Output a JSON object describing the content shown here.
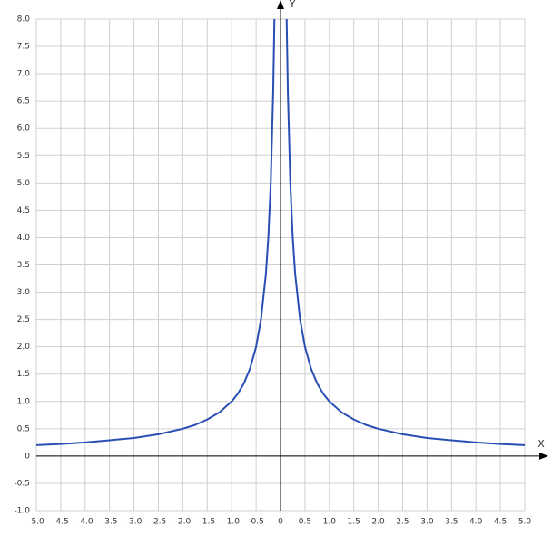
{
  "chart_data": {
    "type": "line",
    "x_label": "X",
    "y_label": "Y",
    "x": [
      -5,
      -4.5,
      -4,
      -3.5,
      -3,
      -2.5,
      -2,
      -1.75,
      -1.5,
      -1.25,
      -1,
      -0.875,
      -0.75,
      -0.625,
      -0.5,
      -0.4,
      -0.3,
      -0.25,
      -0.2,
      -0.15,
      -0.125,
      0,
      0.125,
      0.15,
      0.2,
      0.25,
      0.3,
      0.4,
      0.5,
      0.625,
      0.75,
      0.875,
      1,
      1.25,
      1.5,
      1.75,
      2,
      2.5,
      3,
      3.5,
      4,
      4.5,
      5
    ],
    "series": [
      {
        "color": "#2a4fb4",
        "values": [
          0.2,
          0.22,
          0.25,
          0.29,
          0.33,
          0.4,
          0.5,
          0.57,
          0.67,
          0.8,
          1,
          1.14,
          1.33,
          1.6,
          2,
          2.5,
          3.33,
          4,
          5,
          6.67,
          8,
          null,
          8,
          6.67,
          5,
          4,
          3.33,
          2.5,
          2,
          1.6,
          1.33,
          1.14,
          1,
          0.8,
          0.67,
          0.57,
          0.5,
          0.4,
          0.33,
          0.29,
          0.25,
          0.22,
          0.2
        ]
      }
    ],
    "xlim": [
      -5,
      5
    ],
    "ylim": [
      -1,
      8
    ],
    "grid": true,
    "xticks": [
      {
        "value": -5,
        "label": "-5.0"
      },
      {
        "value": -4.5,
        "label": "-4.5"
      },
      {
        "value": -4,
        "label": "-4.0"
      },
      {
        "value": -3.5,
        "label": "-3.5"
      },
      {
        "value": -3,
        "label": "-3.0"
      },
      {
        "value": -2.5,
        "label": "-2.5"
      },
      {
        "value": -2,
        "label": "-2.0"
      },
      {
        "value": -1.5,
        "label": "-1.5"
      },
      {
        "value": -1,
        "label": "-1.0"
      },
      {
        "value": -0.5,
        "label": "-0.5"
      },
      0,
      {
        "value": 0.5,
        "label": "0.5"
      },
      {
        "value": 1,
        "label": "1.0"
      },
      {
        "value": 1.5,
        "label": "1.5"
      },
      {
        "value": 2,
        "label": "2.0"
      },
      {
        "value": 2.5,
        "label": "2.5"
      },
      {
        "value": 3,
        "label": "3.0"
      },
      {
        "value": 3.5,
        "label": "3.5"
      },
      {
        "value": 4,
        "label": "4.0"
      },
      {
        "value": 4.5,
        "label": "4.5"
      },
      {
        "value": 5,
        "label": "5.0"
      }
    ],
    "yticks": [
      {
        "value": -1,
        "label": "-1.0"
      },
      {
        "value": -0.5,
        "label": "-0.5"
      },
      0,
      {
        "value": 0.5,
        "label": "0.5"
      },
      {
        "value": 1,
        "label": "1.0"
      },
      {
        "value": 1.5,
        "label": "1.5"
      },
      {
        "value": 2,
        "label": "2.0"
      },
      {
        "value": 2.5,
        "label": "2.5"
      },
      {
        "value": 3,
        "label": "3.0"
      },
      {
        "value": 3.5,
        "label": "3.5"
      },
      {
        "value": 4,
        "label": "4.0"
      },
      {
        "value": 4.5,
        "label": "4.5"
      },
      {
        "value": 5,
        "label": "5.0"
      },
      {
        "value": 5.5,
        "label": "5.5"
      },
      {
        "value": 6,
        "label": "6.0"
      },
      {
        "value": 6.5,
        "label": "6.5"
      },
      {
        "value": 7,
        "label": "7.0"
      },
      {
        "value": 7.5,
        "label": "7.5"
      },
      {
        "value": 8,
        "label": "8.0"
      }
    ]
  }
}
